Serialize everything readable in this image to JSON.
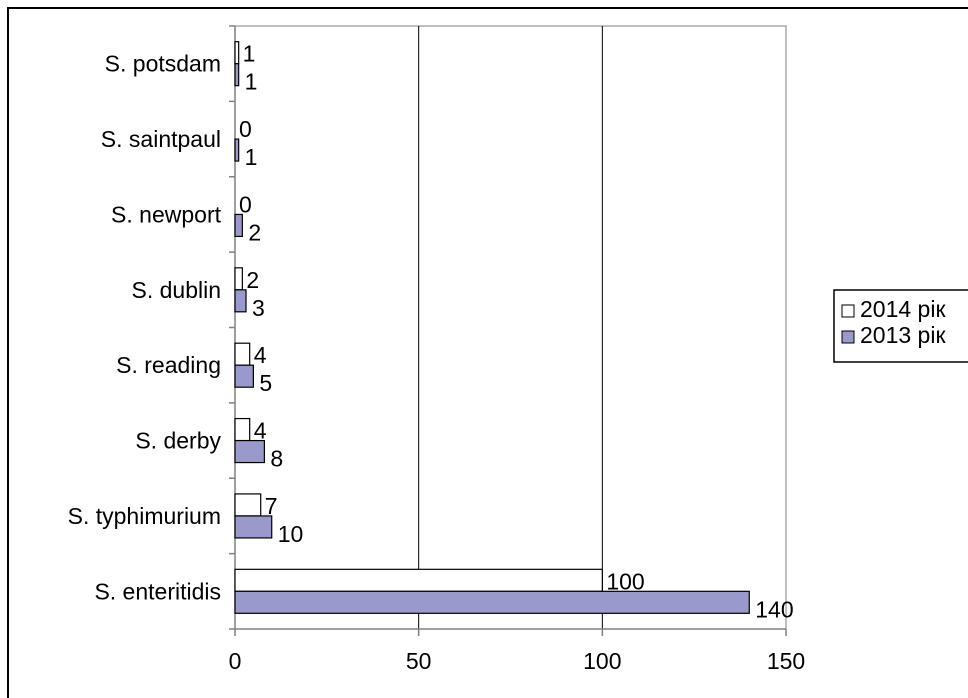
{
  "chart_data": {
    "type": "bar",
    "orientation": "horizontal",
    "categories": [
      "S. potsdam",
      "S. saintpaul",
      "S. newport",
      "S. dublin",
      "S. reading",
      "S. derby",
      "S. typhimurium",
      "S. enteritidis"
    ],
    "series": [
      {
        "name": "2014 рік",
        "values": [
          1,
          0,
          0,
          2,
          4,
          4,
          7,
          100
        ],
        "color": "#ffffff"
      },
      {
        "name": "2013 рік",
        "values": [
          1,
          1,
          2,
          3,
          5,
          8,
          10,
          140
        ],
        "color": "#9999cc"
      }
    ],
    "xlim": [
      0,
      150
    ],
    "xticks": [
      0,
      50,
      100,
      150
    ],
    "grid": "vertical major gridlines",
    "legend_position": "right",
    "title": "",
    "xlabel": "",
    "ylabel": ""
  },
  "colors": {
    "background": "#ffffff",
    "border": "#000000",
    "gridline": "#000000",
    "axis": "#808080",
    "bar_2014": "#ffffff",
    "bar_2013": "#9999cc"
  }
}
